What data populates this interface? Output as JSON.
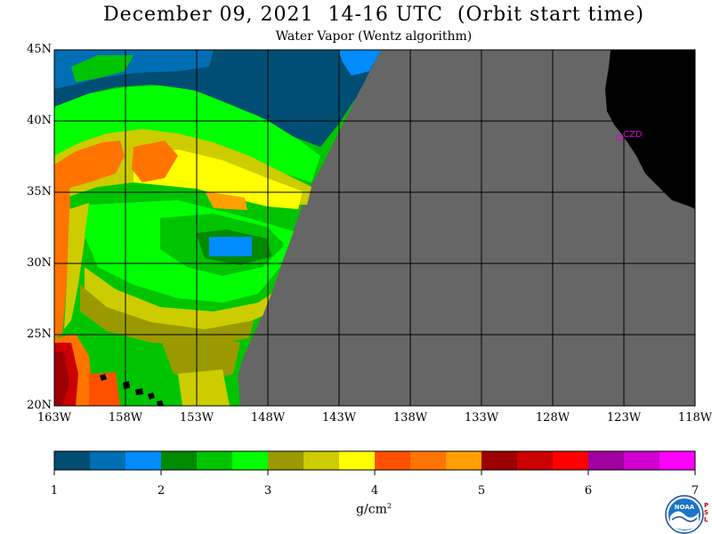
{
  "title": "December 09, 2021  14-16 UTC  (Orbit start time)",
  "subtitle": "Water Vapor (Wentz algorithm)",
  "map": {
    "lat_labels": [
      "45N",
      "40N",
      "35N",
      "30N",
      "25N",
      "20N"
    ],
    "lon_labels": [
      "163W",
      "158W",
      "153W",
      "148W",
      "143W",
      "138W",
      "133W",
      "128W",
      "123W",
      "118W"
    ],
    "place_label": "CZD",
    "colors": {
      "no_data": "#666666",
      "land": "#000000",
      "grid": "#000000",
      "place_marker": "#e000e0"
    }
  },
  "colorbar": {
    "ticks": [
      "1",
      "2",
      "3",
      "4",
      "5",
      "6",
      "7"
    ],
    "unit_base": "g/cm",
    "unit_exp": "2",
    "colors": [
      "#004e73",
      "#006eb4",
      "#008cff",
      "#008a00",
      "#00c400",
      "#00ff00",
      "#9a9a00",
      "#cccc00",
      "#ffff00",
      "#ff5000",
      "#ff7400",
      "#ffa000",
      "#9c0000",
      "#cc0000",
      "#ff0000",
      "#a000a0",
      "#d000d0",
      "#ff00ff"
    ]
  },
  "logo": {
    "text": "NOAA",
    "side_letters": [
      "P",
      "S",
      "L"
    ]
  }
}
